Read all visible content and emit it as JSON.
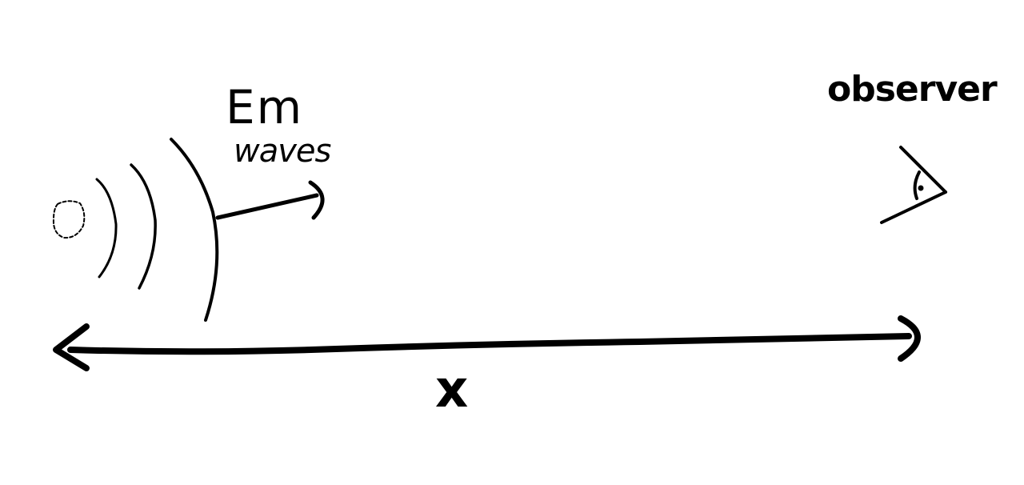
{
  "labels": {
    "em": "Em",
    "waves": "waves",
    "observer": "observer",
    "distance": "x"
  },
  "colors": {
    "ink": "#000000",
    "background": "#ffffff"
  },
  "icons": {
    "source": "dashed-circle-source-icon",
    "observer": "eye-icon"
  }
}
